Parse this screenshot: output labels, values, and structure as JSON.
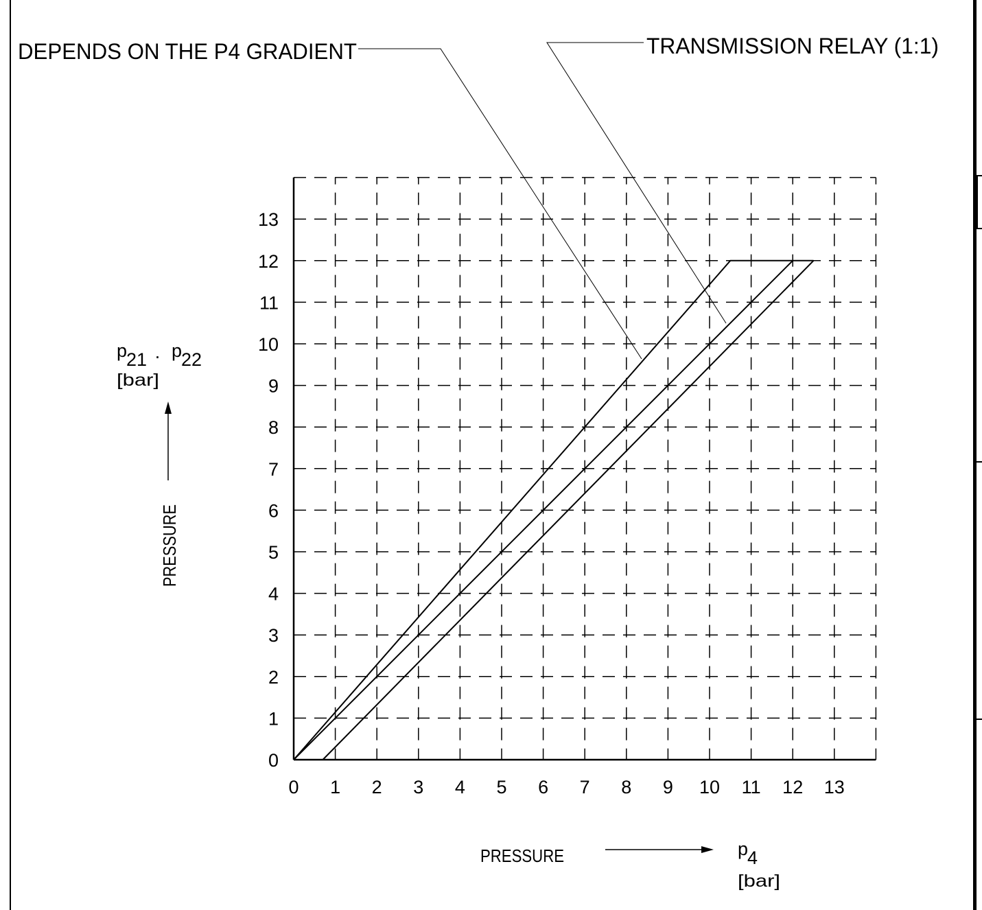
{
  "annotations": {
    "gradient": "DEPENDS ON THE P4 GRADIENT",
    "relay": "TRANSMISSION RELAY (1:1)"
  },
  "y_label": {
    "symbol_a": "p",
    "sub_a": "21",
    "sep": "·",
    "symbol_b": "p",
    "sub_b": "22",
    "unit": "[bar]",
    "quantity": "PRESSURE"
  },
  "x_label": {
    "quantity": "PRESSURE",
    "symbol": "p",
    "sub": "4",
    "unit": "[bar]"
  },
  "chart_data": {
    "type": "line",
    "xlim": [
      0,
      14
    ],
    "ylim": [
      0,
      14
    ],
    "grid": true,
    "grid_style": "dashed",
    "x_ticks": [
      "0",
      "1",
      "2",
      "3",
      "4",
      "5",
      "6",
      "7",
      "8",
      "9",
      "10",
      "11",
      "12",
      "13"
    ],
    "y_ticks": [
      "0",
      "1",
      "2",
      "3",
      "4",
      "5",
      "6",
      "7",
      "8",
      "9",
      "10",
      "11",
      "12",
      "13"
    ],
    "xlabel": "PRESSURE p4 [bar]",
    "ylabel": "PRESSURE p21 · p22 [bar]",
    "series": [
      {
        "x": [
          0,
          10.5,
          12.5
        ],
        "y": [
          0,
          12,
          12
        ]
      },
      {
        "x": [
          0,
          12
        ],
        "y": [
          0,
          12
        ]
      },
      {
        "x": [
          0.7,
          12.5
        ],
        "y": [
          0,
          12
        ]
      }
    ],
    "colors": {
      "line": "#000000",
      "grid": "#000000",
      "background": "#ffffff"
    }
  }
}
